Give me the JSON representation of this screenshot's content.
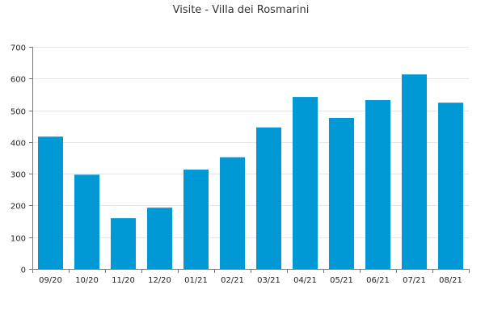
{
  "chart_data": {
    "type": "bar",
    "title": "Visite - Villa dei Rosmarini",
    "xlabel": "",
    "ylabel": "",
    "categories": [
      "09/20",
      "10/20",
      "11/20",
      "12/20",
      "01/21",
      "02/21",
      "03/21",
      "04/21",
      "05/21",
      "06/21",
      "07/21",
      "08/21"
    ],
    "values": [
      417,
      297,
      160,
      193,
      313,
      352,
      446,
      542,
      476,
      532,
      613,
      524
    ],
    "ylim": [
      0,
      700
    ],
    "yticks": [
      0,
      100,
      200,
      300,
      400,
      500,
      600,
      700
    ],
    "grid": true,
    "legend": "none",
    "colors": {
      "bar": "#0099d6",
      "grid": "#e6e6e6",
      "axis": "#777777"
    }
  }
}
